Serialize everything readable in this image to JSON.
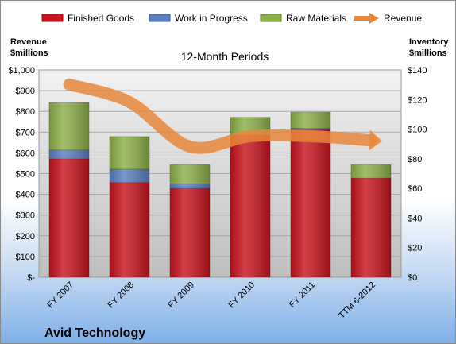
{
  "chart_data": {
    "type": "bar",
    "stacked": true,
    "title": "12-Month Periods",
    "company": "Avid Technology",
    "y_left_label": [
      "Revenue",
      "$millions"
    ],
    "y_right_label": [
      "Inventory",
      "$millions"
    ],
    "categories": [
      "FY 2007",
      "FY 2008",
      "FY 2009",
      "FY 2010",
      "FY 2011",
      "TTM 6-2012"
    ],
    "series": [
      {
        "name": "Finished Goods",
        "axis": "right",
        "color": "#c8141e",
        "values": [
          80,
          64,
          60,
          96,
          100,
          67
        ]
      },
      {
        "name": "Work in Progress",
        "axis": "right",
        "color": "#5b7fc0",
        "values": [
          6,
          9,
          3,
          0,
          0.5,
          0
        ]
      },
      {
        "name": "Raw Materials",
        "axis": "right",
        "color": "#8db04a",
        "values": [
          32,
          22,
          13,
          12,
          11,
          9
        ]
      },
      {
        "name": "Revenue",
        "axis": "left",
        "type": "line",
        "color": "#e8873c",
        "values": [
          930,
          845,
          630,
          680,
          680,
          660
        ]
      }
    ],
    "y_left": {
      "min": 0,
      "max": 1000,
      "step": 100,
      "tick_labels": [
        "$-",
        "$100",
        "$200",
        "$300",
        "$400",
        "$500",
        "$600",
        "$700",
        "$800",
        "$900",
        "$1,000"
      ]
    },
    "y_right": {
      "min": 0,
      "max": 140,
      "step": 20,
      "tick_labels": [
        "$0",
        "$20",
        "$40",
        "$60",
        "$80",
        "$100",
        "$120",
        "$140"
      ]
    },
    "grid": "horizontal",
    "legend_position": "top"
  }
}
